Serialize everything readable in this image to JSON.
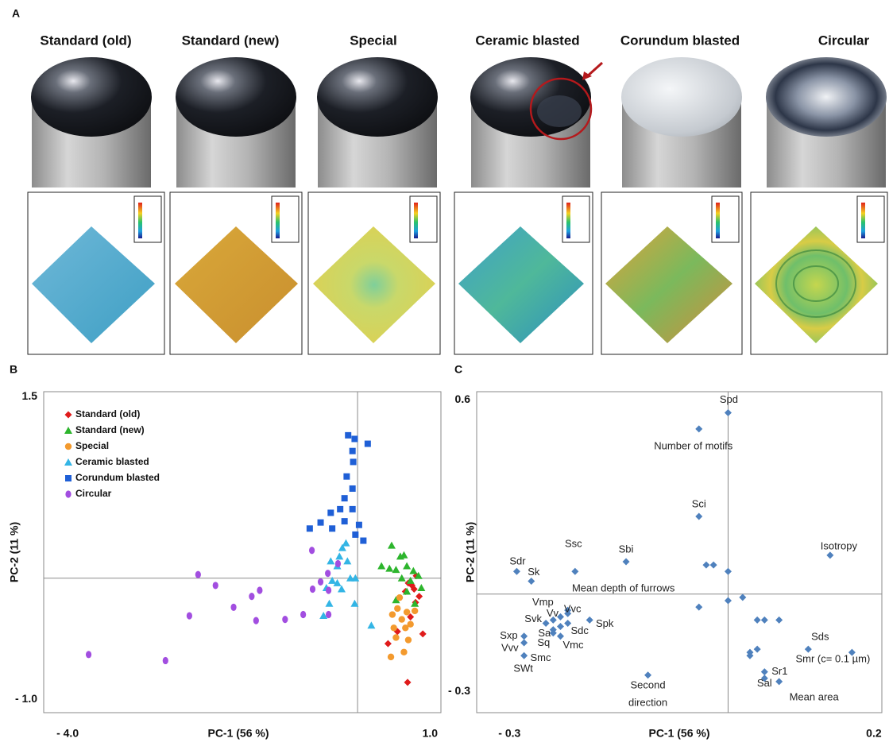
{
  "panel_labels": [
    "A",
    "B",
    "C"
  ],
  "samples": [
    "Standard (old)",
    "Standard (new)",
    "Special",
    "Ceramic blasted",
    "Corundum blasted",
    "Circular"
  ],
  "chart_data": [
    {
      "type": "scatter",
      "xlabel": "PC-1 (56 %)",
      "ylabel": "PC-2 (11 %)",
      "xlim": [
        -4.33,
        1.15
      ],
      "ylim": [
        -1.11,
        1.54
      ],
      "xticks": [
        {
          "value": -4,
          "label": "- 4.0"
        },
        {
          "value": 1,
          "label": "1.0"
        }
      ],
      "yticks": [
        {
          "value": -1,
          "label": "- 1.0"
        },
        1.5
      ],
      "zero_lines": true,
      "legend": "upper left",
      "series": [
        {
          "name": "Standard (old)",
          "color": "#e01b1b",
          "marker": "diamond",
          "x": [
            0.81,
            0.75,
            0.85,
            0.78,
            0.7,
            0.73,
            0.42,
            0.55,
            0.9,
            0.69,
            0.8,
            0.66
          ],
          "y": [
            0.02,
            -0.06,
            -0.15,
            -0.09,
            -0.04,
            -0.32,
            -0.54,
            -0.44,
            -0.46,
            -0.86,
            -0.2,
            -0.11
          ]
        },
        {
          "name": "Standard (new)",
          "color": "#2db52d",
          "marker": "triangle",
          "x": [
            0.47,
            0.33,
            0.64,
            0.53,
            0.68,
            0.77,
            0.61,
            0.88,
            0.53,
            0.79,
            0.68,
            0.73,
            0.59,
            0.44,
            0.84
          ],
          "y": [
            0.27,
            0.1,
            0.19,
            0.07,
            0.1,
            0.06,
            0.0,
            -0.08,
            -0.18,
            -0.21,
            -0.11,
            -0.02,
            0.18,
            0.08,
            0.02
          ]
        },
        {
          "name": "Special",
          "color": "#f39a2e",
          "marker": "circle",
          "x": [
            0.46,
            0.64,
            0.53,
            0.66,
            0.48,
            0.61,
            0.73,
            0.55,
            0.68,
            0.58,
            0.79,
            0.5,
            0.7
          ],
          "y": [
            -0.65,
            -0.61,
            -0.49,
            -0.41,
            -0.3,
            -0.34,
            -0.38,
            -0.25,
            -0.28,
            -0.16,
            -0.27,
            -0.41,
            -0.51
          ]
        },
        {
          "name": "Ceramic blasted",
          "color": "#33b5e5",
          "marker": "triangle",
          "x": [
            -0.47,
            -0.39,
            -0.43,
            -0.35,
            -0.28,
            -0.25,
            -0.21,
            -0.14,
            -0.1,
            -0.04,
            -0.22,
            -0.28,
            -0.37,
            0.19,
            -0.16,
            -0.03
          ],
          "y": [
            -0.31,
            -0.21,
            -0.08,
            -0.02,
            0.1,
            0.18,
            0.25,
            0.14,
            0.0,
            -0.21,
            -0.09,
            -0.04,
            0.14,
            -0.39,
            0.29,
            0.0
          ]
        },
        {
          "name": "Corundum blasted",
          "color": "#1f5fd6",
          "marker": "square",
          "x": [
            -0.13,
            -0.04,
            0.14,
            -0.07,
            -0.06,
            -0.15,
            -0.07,
            -0.18,
            -0.24,
            -0.07,
            -0.37,
            -0.18,
            -0.51,
            0.02,
            -0.03,
            0.08,
            -0.35,
            -0.66
          ],
          "y": [
            1.18,
            1.15,
            1.11,
            1.05,
            0.96,
            0.84,
            0.74,
            0.66,
            0.57,
            0.57,
            0.54,
            0.47,
            0.46,
            0.44,
            0.36,
            0.31,
            0.41,
            0.41
          ]
        },
        {
          "name": "Circular",
          "color": "#a24ee0",
          "marker": "ellipse",
          "x": [
            -3.71,
            -2.65,
            -2.32,
            -2.2,
            -1.96,
            -1.71,
            -1.46,
            -1.4,
            -1.35,
            -1.0,
            -0.75,
            -0.63,
            -0.62,
            -0.51,
            -0.4,
            -0.41,
            -0.27,
            -0.4
          ],
          "y": [
            -0.63,
            -0.68,
            -0.31,
            0.03,
            -0.06,
            -0.24,
            -0.15,
            -0.35,
            -0.1,
            -0.34,
            -0.3,
            0.23,
            -0.09,
            -0.03,
            -0.1,
            0.04,
            0.12,
            -0.3
          ]
        }
      ]
    },
    {
      "type": "scatter",
      "xlabel": "PC-1 (56 %)",
      "ylabel": "PC-2 (11 %)",
      "xlim": [
        -0.345,
        0.211
      ],
      "ylim": [
        -0.366,
        0.625
      ],
      "xticks": [
        {
          "value": -0.3,
          "label": "- 0.3"
        },
        0.2
      ],
      "yticks": [
        {
          "value": -0.3,
          "label": "- 0.3"
        },
        0.6
      ],
      "zero_lines": true,
      "series": [
        {
          "color": "#4f81bd",
          "marker": "diamond",
          "x": [
            0.0,
            -0.04,
            -0.04,
            -0.14,
            -0.21,
            0.14,
            -0.29,
            -0.27,
            -0.22,
            -0.24,
            -0.23,
            -0.22,
            -0.19,
            -0.25,
            -0.24,
            -0.22,
            -0.23,
            -0.24,
            -0.23,
            -0.28,
            -0.28,
            -0.28,
            0.11,
            0.17,
            0.05,
            0.05,
            0.07,
            -0.11,
            -0.03,
            -0.02,
            0.0,
            0.0,
            0.02,
            -0.04,
            0.04,
            0.05,
            0.07,
            0.03,
            0.03,
            0.04
          ],
          "y": [
            0.56,
            0.51,
            0.24,
            0.1,
            0.07,
            0.12,
            0.07,
            0.04,
            -0.05,
            -0.08,
            -0.07,
            -0.06,
            -0.08,
            -0.09,
            -0.11,
            -0.09,
            -0.1,
            -0.12,
            -0.13,
            -0.13,
            -0.15,
            -0.19,
            -0.17,
            -0.18,
            -0.24,
            -0.26,
            -0.27,
            -0.25,
            0.09,
            0.09,
            0.07,
            -0.02,
            -0.01,
            -0.04,
            -0.08,
            -0.08,
            -0.08,
            -0.19,
            -0.18,
            -0.17
          ],
          "labels": [
            "Spd",
            "Number of motifs",
            "Sci",
            "Sbi",
            "Ssc",
            "Isotropy",
            "Sdr",
            "Sk",
            "Mean depth of furrows",
            "Vmp",
            "Vv",
            "Vvc",
            "Spk",
            "Svk",
            "Sa",
            "Sdc",
            "Vmc",
            "Sq",
            "Smc",
            "Sxp",
            "Vvv",
            "SWt",
            "Sds",
            "Smr (c= 0.1 µm)",
            "Sr1",
            "Sal",
            "Mean area",
            "Second direction",
            null,
            null,
            null,
            null,
            null,
            null,
            null,
            null,
            null,
            null,
            null,
            null
          ]
        }
      ]
    }
  ]
}
